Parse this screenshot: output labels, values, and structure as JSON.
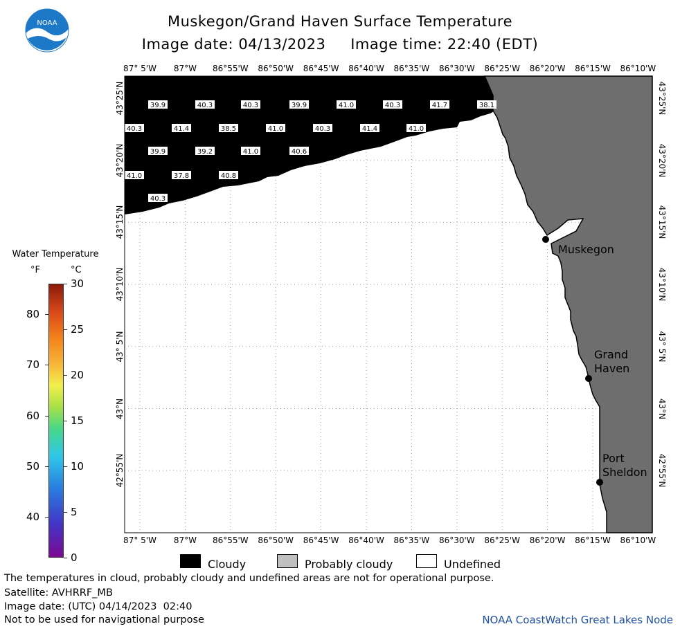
{
  "header": {
    "title_line1": "Muskegon/Grand Haven Surface Temperature",
    "title_line2": "Image date: 04/13/2023     Image time: 22:40 (EDT)",
    "logo_text": "NOAA"
  },
  "map": {
    "lon_labels": [
      "87° 5'W",
      "87°W",
      "86°55'W",
      "86°50'W",
      "86°45'W",
      "86°40'W",
      "86°35'W",
      "86°30'W",
      "86°25'W",
      "86°20'W",
      "86°15'W",
      "86°10'W"
    ],
    "lat_labels": [
      "43°25'N",
      "43°20'N",
      "43°15'N",
      "43°10'N",
      "43° 5'N",
      "43°N",
      "42°55'N"
    ],
    "cities": [
      "Muskegon",
      "Grand Haven",
      "Port Sheldon"
    ],
    "temperature_readings_F": [
      [
        "39.9",
        "40.3",
        "40.3",
        "39.9",
        "41.0",
        "40.3",
        "41.7",
        "38.1"
      ],
      [
        "40.3",
        "41.4",
        "38.5",
        "41.0",
        "40.3",
        "41.4",
        "41.0"
      ],
      [
        "39.9",
        "39.2",
        "41.0",
        "40.6"
      ],
      [
        "41.0",
        "37.8",
        "40.8"
      ],
      [
        "40.3"
      ]
    ],
    "colors": {
      "cloudy": "#000000",
      "land": "#6e6e6e",
      "undefined": "#ffffff",
      "grid": "#9a9a9a"
    }
  },
  "legend": {
    "title": "Water Temperature",
    "unit_f": "°F",
    "unit_c": "°C",
    "f_ticks": [
      "80",
      "70",
      "60",
      "50",
      "40"
    ],
    "c_ticks": [
      "30",
      "25",
      "20",
      "15",
      "10",
      "5",
      "0"
    ],
    "key": [
      {
        "label": "Cloudy",
        "color": "#000000"
      },
      {
        "label": "Probably cloudy",
        "color": "#c0c0c0"
      },
      {
        "label": "Undefined",
        "color": "#ffffff"
      }
    ]
  },
  "footer": {
    "line1": "The temperatures in cloud, probably cloudy and undefined areas are not for operational purpose.",
    "line2": "Satellite: AVHRRF_MB",
    "line3": "Image date: (UTC) 04/14/2023  02:40",
    "line4": "Not to be used for navigational purpose",
    "credit": "NOAA CoastWatch Great Lakes Node"
  }
}
